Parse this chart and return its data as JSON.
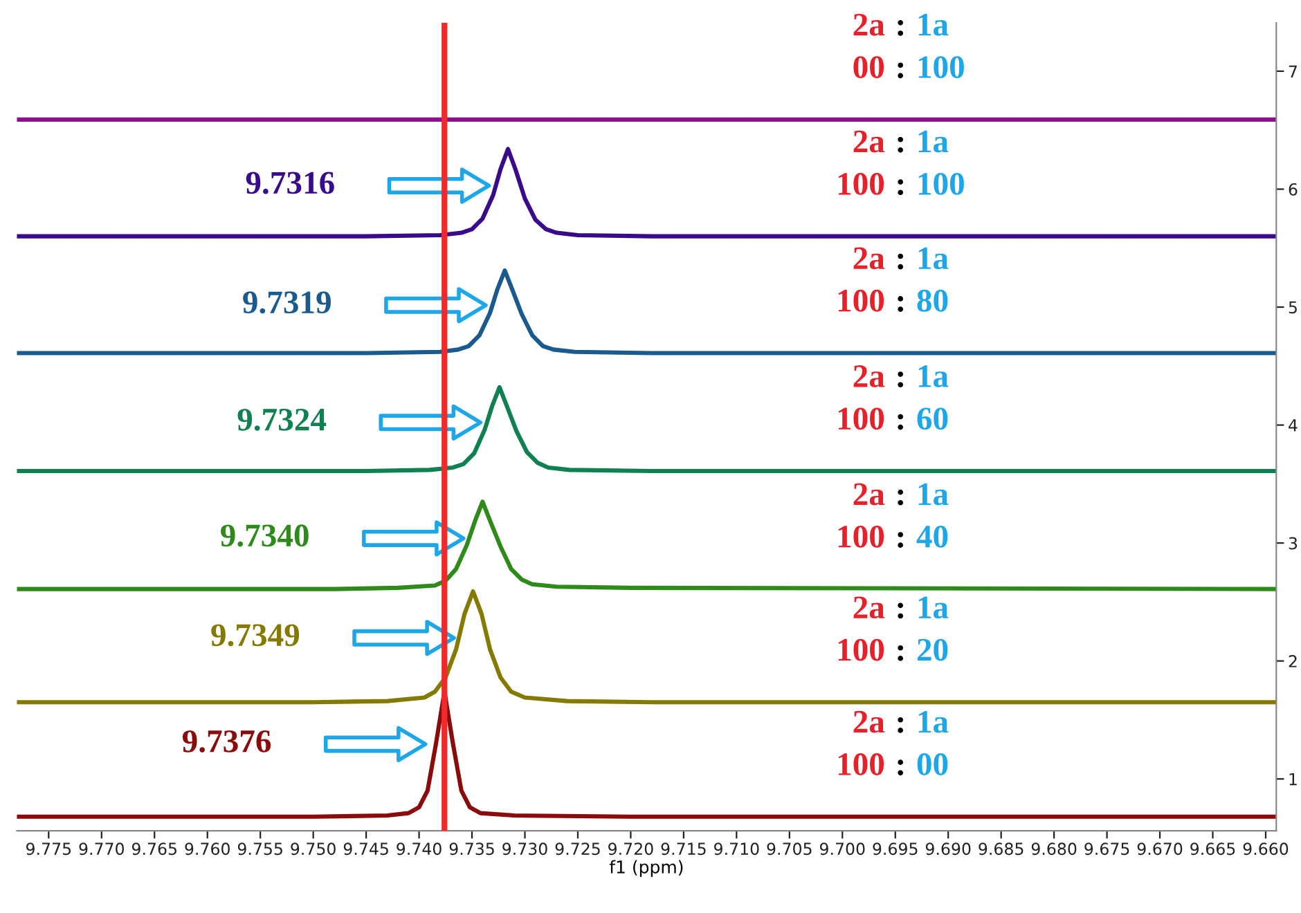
{
  "chart_data": {
    "type": "line",
    "xlabel": "f1 (ppm)",
    "xlim": [
      9.778,
      9.659
    ],
    "ylim": [
      0.56,
      7.41
    ],
    "xticks": [
      9.775,
      {
        "value": 9.77,
        "label": "9.770"
      },
      9.765,
      {
        "value": 9.76,
        "label": "9.760"
      },
      9.755,
      {
        "value": 9.75,
        "label": "9.750"
      },
      9.745,
      {
        "value": 9.74,
        "label": "9.740"
      },
      9.735,
      {
        "value": 9.73,
        "label": "9.730"
      },
      9.725,
      {
        "value": 9.72,
        "label": "9.720"
      },
      9.715,
      {
        "value": 9.71,
        "label": "9.710"
      },
      9.705,
      {
        "value": 9.7,
        "label": "9.700"
      },
      9.695,
      {
        "value": 9.69,
        "label": "9.690"
      },
      9.685,
      {
        "value": 9.68,
        "label": "9.680"
      },
      9.675,
      {
        "value": 9.67,
        "label": "9.670"
      },
      9.665,
      {
        "value": 9.66,
        "label": "9.660"
      }
    ],
    "yticks": [
      1,
      2,
      3,
      4,
      5,
      6,
      7
    ],
    "grid": false,
    "legend": false,
    "marker": "none",
    "line_style": "solid",
    "series": [
      {
        "name": "2a : 1a\n100 : 00",
        "color": "#8b0a0a",
        "x": [
          9.778,
          9.75,
          9.743,
          9.741,
          9.74,
          9.7392,
          9.7384,
          9.7376,
          9.7368,
          9.736,
          9.7352,
          9.7342,
          9.731,
          9.72,
          9.659
        ],
        "values": [
          0.68,
          0.68,
          0.69,
          0.71,
          0.76,
          0.9,
          1.3,
          1.74,
          1.3,
          0.9,
          0.76,
          0.71,
          0.69,
          0.68,
          0.68
        ]
      },
      {
        "name": "2a : 1a\n100 : 20",
        "color": "#857a00",
        "x": [
          9.778,
          9.75,
          9.743,
          9.7395,
          9.7385,
          9.7375,
          9.7365,
          9.7357,
          9.7349,
          9.7341,
          9.7333,
          9.7323,
          9.7313,
          9.73,
          9.726,
          9.718,
          9.659
        ],
        "values": [
          1.65,
          1.65,
          1.66,
          1.69,
          1.74,
          1.86,
          2.1,
          2.4,
          2.59,
          2.4,
          2.1,
          1.86,
          1.74,
          1.69,
          1.66,
          1.65,
          1.65
        ]
      },
      {
        "name": "2a : 1a\n100 : 40",
        "color": "#2e8b1a",
        "x": [
          9.778,
          9.748,
          9.742,
          9.7385,
          9.7375,
          9.7365,
          9.7355,
          9.7347,
          9.734,
          9.7333,
          9.7323,
          9.7313,
          9.7303,
          9.7293,
          9.727,
          9.72,
          9.659
        ],
        "values": [
          2.61,
          2.61,
          2.62,
          2.64,
          2.68,
          2.78,
          2.98,
          3.19,
          3.35,
          3.19,
          2.97,
          2.78,
          2.69,
          2.65,
          2.63,
          2.62,
          2.61
        ]
      },
      {
        "name": "2a : 1a\n100 : 60",
        "color": "#0f8050",
        "x": [
          9.778,
          9.745,
          9.739,
          9.7368,
          9.7358,
          9.7348,
          9.7338,
          9.7331,
          9.7324,
          9.7317,
          9.7308,
          9.7298,
          9.7288,
          9.7278,
          9.7258,
          9.718,
          9.659
        ],
        "values": [
          3.61,
          3.61,
          3.62,
          3.64,
          3.67,
          3.76,
          3.96,
          4.16,
          4.32,
          4.16,
          3.95,
          3.77,
          3.68,
          3.64,
          3.62,
          3.61,
          3.61
        ]
      },
      {
        "name": "2a : 1a\n100 : 80",
        "color": "#1a5a8c",
        "x": [
          9.778,
          9.745,
          9.738,
          9.7363,
          9.7353,
          9.7343,
          9.7333,
          9.7326,
          9.7319,
          9.7312,
          9.7303,
          9.7293,
          9.7283,
          9.7273,
          9.7253,
          9.718,
          9.659
        ],
        "values": [
          4.61,
          4.61,
          4.62,
          4.64,
          4.67,
          4.76,
          4.95,
          5.15,
          5.31,
          5.15,
          4.94,
          4.76,
          4.67,
          4.64,
          4.62,
          4.61,
          4.61
        ]
      },
      {
        "name": "2a : 1a\n100 : 100",
        "color": "#3a0a8c",
        "x": [
          9.778,
          9.745,
          9.738,
          9.736,
          9.735,
          9.734,
          9.733,
          9.7323,
          9.7316,
          9.7309,
          9.73,
          9.729,
          9.728,
          9.727,
          9.725,
          9.718,
          9.659
        ],
        "values": [
          5.6,
          5.6,
          5.61,
          5.63,
          5.66,
          5.75,
          5.95,
          6.17,
          6.34,
          6.17,
          5.92,
          5.74,
          5.66,
          5.63,
          5.61,
          5.6,
          5.6
        ]
      },
      {
        "name": "2a : 1a\n00 : 100",
        "color": "#8b108b",
        "x": [
          9.778,
          9.659
        ],
        "values": [
          6.59,
          6.59
        ]
      }
    ],
    "annotations": [
      "9.7376",
      "9.7349",
      "9.7340",
      "9.7324",
      "9.7319",
      "9.7316"
    ],
    "ref_lines": [
      {
        "axis": "x",
        "value": 9.7376,
        "color": "#ee2a2a",
        "line_style": "solid"
      }
    ]
  }
}
